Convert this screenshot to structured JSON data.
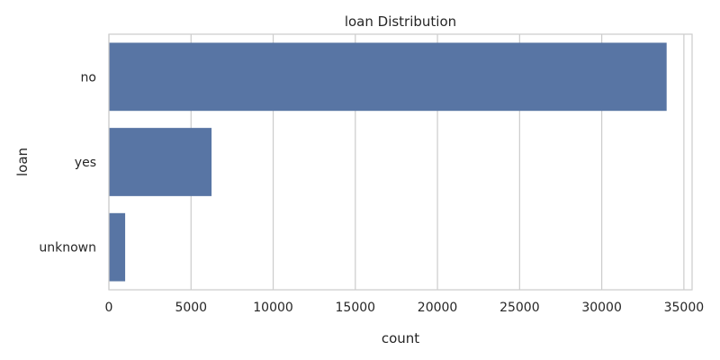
{
  "chart_data": {
    "type": "bar",
    "orientation": "horizontal",
    "title": "loan Distribution",
    "xlabel": "count",
    "ylabel": "loan",
    "categories": [
      "no",
      "yes",
      "unknown"
    ],
    "values": [
      33950,
      6248,
      990
    ],
    "xlim": [
      0,
      35500
    ],
    "xticks": [
      0,
      5000,
      10000,
      15000,
      20000,
      25000,
      30000,
      35000
    ],
    "grid": true,
    "bar_color": "#5875a4",
    "grid_color": "#cccccc"
  }
}
